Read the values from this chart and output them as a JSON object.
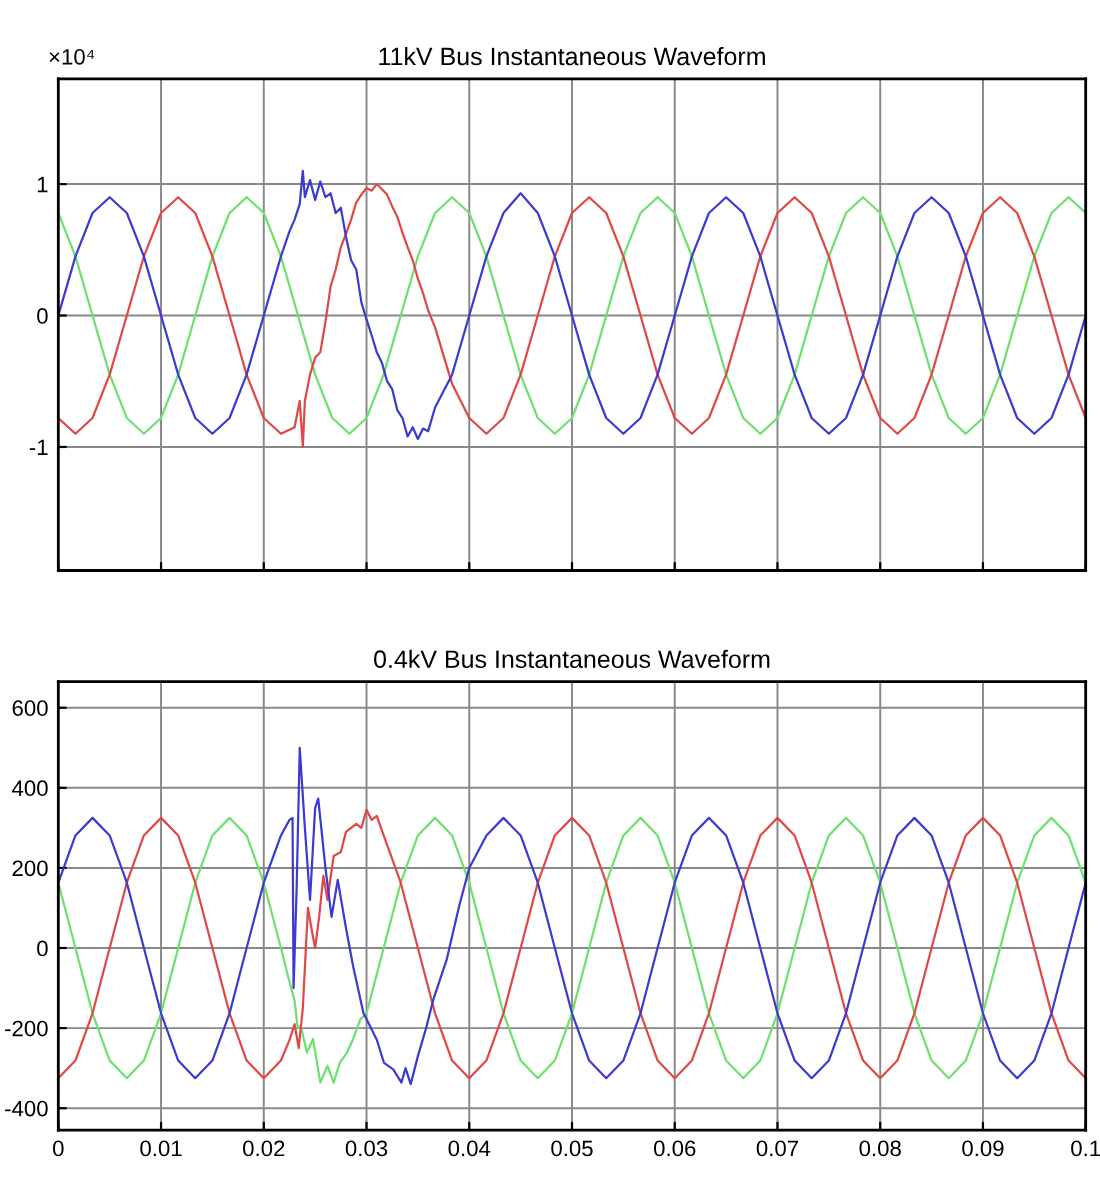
{
  "chart_data": [
    {
      "type": "line",
      "title": "11kV Bus Instantaneous Waveform",
      "annotations": [
        "×10⁴"
      ],
      "xlim": [
        0,
        0.1
      ],
      "xticks": [
        0,
        0.01,
        0.02,
        0.03,
        0.04,
        0.05,
        0.06,
        0.07,
        0.08,
        0.09,
        0.1
      ],
      "ylim": [
        -1.94,
        1.8
      ],
      "yticks": [
        -1,
        0,
        1
      ],
      "grid": true,
      "tick_labels": "y",
      "line_style": "solid",
      "x": [
        0,
        0.00167,
        0.00333,
        0.005,
        0.00667,
        0.00833,
        0.01,
        0.01167,
        0.01333,
        0.015,
        0.01667,
        0.01833,
        0.02,
        0.02167,
        0.02333,
        0.025,
        0.02667,
        0.02833,
        0.03,
        0.03167,
        0.03333,
        0.035,
        0.03667,
        0.03833,
        0.04,
        0.04167,
        0.04333,
        0.045,
        0.04667,
        0.04833,
        0.05,
        0.05167,
        0.05333,
        0.055,
        0.05667,
        0.05833,
        0.06,
        0.06167,
        0.06333,
        0.065,
        0.06667,
        0.06833,
        0.07,
        0.07167,
        0.07333,
        0.075,
        0.07667,
        0.07833,
        0.08,
        0.08167,
        0.08333,
        0.085,
        0.08667,
        0.08833,
        0.09,
        0.09167,
        0.09333,
        0.095,
        0.09667,
        0.09833,
        0.1
      ],
      "series": [
        {
          "color": "#6ee06e",
          "values": [
            0.78,
            0.45,
            0,
            -0.45,
            -0.78,
            -0.9,
            -0.78,
            -0.45,
            0,
            0.45,
            0.78,
            0.9,
            0.78,
            0.45,
            0,
            -0.45,
            -0.78,
            -0.9,
            -0.78,
            -0.45,
            0,
            0.45,
            0.78,
            0.9,
            0.78,
            0.45,
            0,
            -0.45,
            -0.78,
            -0.9,
            -0.78,
            -0.45,
            0,
            0.45,
            0.78,
            0.9,
            0.78,
            0.45,
            0,
            -0.45,
            -0.78,
            -0.9,
            -0.78,
            -0.45,
            0,
            0.45,
            0.78,
            0.9,
            0.78,
            0.45,
            0,
            -0.45,
            -0.78,
            -0.9,
            -0.78,
            -0.45,
            0,
            0.45,
            0.78,
            0.9,
            0.78
          ]
        },
        {
          "color": "#e04848",
          "x": [
            0,
            0.00167,
            0.00333,
            0.005,
            0.00667,
            0.00833,
            0.01,
            0.01167,
            0.01333,
            0.015,
            0.01667,
            0.01833,
            0.02,
            0.02167,
            0.0225,
            0.023,
            0.0235,
            0.0238,
            0.024,
            0.0245,
            0.025,
            0.0255,
            0.026,
            0.0265,
            0.027,
            0.0275,
            0.028,
            0.0285,
            0.029,
            0.0295,
            0.03,
            0.0305,
            0.031,
            0.0315,
            0.032,
            0.0325,
            0.033,
            0.0335,
            0.034,
            0.0345,
            0.035,
            0.0355,
            0.036,
            0.03667,
            0.03833,
            0.04,
            0.04167,
            0.04333,
            0.045,
            0.04667,
            0.04833,
            0.05,
            0.05167,
            0.05333,
            0.055,
            0.05667,
            0.05833,
            0.06,
            0.06167,
            0.06333,
            0.065,
            0.06667,
            0.06833,
            0.07,
            0.07167,
            0.07333,
            0.075,
            0.07667,
            0.07833,
            0.08,
            0.08167,
            0.08333,
            0.085,
            0.08667,
            0.08833,
            0.09,
            0.09167,
            0.09333,
            0.095,
            0.09667,
            0.09833,
            0.1
          ],
          "values": [
            -0.78,
            -0.9,
            -0.78,
            -0.45,
            0,
            0.45,
            0.78,
            0.9,
            0.78,
            0.45,
            0,
            -0.45,
            -0.78,
            -0.9,
            -0.87,
            -0.85,
            -0.65,
            -1,
            -0.65,
            -0.45,
            -0.32,
            -0.28,
            -0.05,
            0.22,
            0.35,
            0.52,
            0.62,
            0.73,
            0.86,
            0.92,
            0.97,
            0.95,
            1,
            0.96,
            0.92,
            0.83,
            0.75,
            0.63,
            0.52,
            0.42,
            0.28,
            0.17,
            0.04,
            -0.09,
            -0.52,
            -0.78,
            -0.9,
            -0.78,
            -0.45,
            0,
            0.45,
            0.78,
            0.9,
            0.78,
            0.45,
            0,
            -0.45,
            -0.78,
            -0.9,
            -0.78,
            -0.45,
            0,
            0.45,
            0.78,
            0.9,
            0.78,
            0.45,
            0,
            -0.45,
            -0.78,
            -0.9,
            -0.78,
            -0.45,
            0,
            0.45,
            0.78,
            0.9,
            0.78,
            0.45,
            0,
            -0.45,
            -0.78
          ]
        },
        {
          "color": "#3b3bd0",
          "x": [
            0,
            0.00167,
            0.00333,
            0.005,
            0.00667,
            0.00833,
            0.01,
            0.01167,
            0.01333,
            0.015,
            0.01667,
            0.01833,
            0.02,
            0.02167,
            0.0225,
            0.023,
            0.0235,
            0.0238,
            0.024,
            0.0245,
            0.025,
            0.0255,
            0.026,
            0.0265,
            0.027,
            0.0275,
            0.028,
            0.0285,
            0.029,
            0.0295,
            0.03,
            0.0305,
            0.031,
            0.0315,
            0.032,
            0.0325,
            0.033,
            0.0335,
            0.034,
            0.0345,
            0.035,
            0.0355,
            0.036,
            0.03667,
            0.03833,
            0.04,
            0.04167,
            0.04333,
            0.045,
            0.04667,
            0.04833,
            0.05,
            0.05167,
            0.05333,
            0.055,
            0.05667,
            0.05833,
            0.06,
            0.06167,
            0.06333,
            0.065,
            0.06667,
            0.06833,
            0.07,
            0.07167,
            0.07333,
            0.075,
            0.07667,
            0.07833,
            0.08,
            0.08167,
            0.08333,
            0.085,
            0.08667,
            0.08833,
            0.09,
            0.09167,
            0.09333,
            0.095,
            0.09667,
            0.09833,
            0.1
          ],
          "values": [
            0,
            0.45,
            0.78,
            0.9,
            0.78,
            0.45,
            0,
            -0.45,
            -0.78,
            -0.9,
            -0.78,
            -0.45,
            0,
            0.45,
            0.64,
            0.73,
            0.85,
            1.1,
            0.9,
            1.03,
            0.88,
            1.02,
            0.9,
            0.93,
            0.78,
            0.82,
            0.6,
            0.42,
            0.35,
            0.1,
            -0.03,
            -0.15,
            -0.28,
            -0.36,
            -0.5,
            -0.56,
            -0.72,
            -0.78,
            -0.92,
            -0.85,
            -0.94,
            -0.86,
            -0.88,
            -0.7,
            -0.45,
            0,
            0.45,
            0.78,
            0.93,
            0.78,
            0.45,
            0,
            -0.45,
            -0.78,
            -0.9,
            -0.78,
            -0.45,
            0,
            0.45,
            0.78,
            0.9,
            0.78,
            0.45,
            0,
            -0.45,
            -0.78,
            -0.9,
            -0.78,
            -0.45,
            0,
            0.45,
            0.78,
            0.9,
            0.78,
            0.45,
            0,
            -0.45,
            -0.78,
            -0.9,
            -0.78,
            -0.45,
            0
          ]
        }
      ]
    },
    {
      "type": "line",
      "title": "0.4kV Bus Instantaneous Waveform",
      "xlim": [
        0,
        0.1
      ],
      "xticks": [
        0,
        0.01,
        0.02,
        0.03,
        0.04,
        0.05,
        0.06,
        0.07,
        0.08,
        0.09,
        0.1
      ],
      "ylim": [
        -455,
        665
      ],
      "yticks": [
        -400,
        -200,
        0,
        200,
        400,
        600
      ],
      "grid": true,
      "line_style": "solid",
      "series": [
        {
          "color": "#6ee06e",
          "x": [
            0,
            0.00167,
            0.00333,
            0.005,
            0.00667,
            0.00833,
            0.01,
            0.01167,
            0.01333,
            0.015,
            0.01667,
            0.01833,
            0.02,
            0.02167,
            0.0225,
            0.023,
            0.0233,
            0.0236,
            0.0242,
            0.0248,
            0.0255,
            0.0262,
            0.0268,
            0.0274,
            0.0281,
            0.0287,
            0.0294,
            0.03,
            0.03167,
            0.03333,
            0.035,
            0.03667,
            0.03833,
            0.04,
            0.04167,
            0.04333,
            0.045,
            0.04667,
            0.04833,
            0.05,
            0.05167,
            0.05333,
            0.055,
            0.05667,
            0.05833,
            0.06,
            0.06167,
            0.06333,
            0.065,
            0.06667,
            0.06833,
            0.07,
            0.07167,
            0.07333,
            0.075,
            0.07667,
            0.07833,
            0.08,
            0.08167,
            0.08333,
            0.085,
            0.08667,
            0.08833,
            0.09,
            0.09167,
            0.09333,
            0.095,
            0.09667,
            0.09833,
            0.1
          ],
          "values": [
            163,
            0,
            -163,
            -281,
            -325,
            -281,
            -163,
            0,
            163,
            281,
            325,
            281,
            163,
            0,
            -84,
            -132,
            -200,
            -195,
            -261,
            -227,
            -336,
            -294,
            -336,
            -287,
            -261,
            -227,
            -178,
            -163,
            0,
            163,
            281,
            325,
            281,
            163,
            0,
            -163,
            -281,
            -325,
            -281,
            -163,
            0,
            163,
            281,
            325,
            281,
            163,
            0,
            -163,
            -281,
            -325,
            -281,
            -163,
            0,
            163,
            281,
            325,
            281,
            163,
            0,
            -163,
            -281,
            -325,
            -281,
            -163,
            0,
            163,
            281,
            325,
            281,
            163
          ]
        },
        {
          "color": "#e04848",
          "x": [
            0,
            0.00167,
            0.00333,
            0.005,
            0.00667,
            0.00833,
            0.01,
            0.01167,
            0.01333,
            0.015,
            0.01667,
            0.01833,
            0.02,
            0.02167,
            0.0225,
            0.023,
            0.0234,
            0.0238,
            0.0243,
            0.0247,
            0.025,
            0.0254,
            0.0258,
            0.0262,
            0.0268,
            0.0275,
            0.028,
            0.029,
            0.0295,
            0.03,
            0.0305,
            0.031,
            0.03167,
            0.03333,
            0.035,
            0.03667,
            0.03833,
            0.04,
            0.04167,
            0.04333,
            0.045,
            0.04667,
            0.04833,
            0.05,
            0.05167,
            0.05333,
            0.055,
            0.05667,
            0.05833,
            0.06,
            0.06167,
            0.06333,
            0.065,
            0.06667,
            0.06833,
            0.07,
            0.07167,
            0.07333,
            0.075,
            0.07667,
            0.07833,
            0.08,
            0.08167,
            0.08333,
            0.085,
            0.08667,
            0.08833,
            0.09,
            0.09167,
            0.09333,
            0.095,
            0.09667,
            0.09833,
            0.1
          ],
          "values": [
            -325,
            -281,
            -163,
            0,
            163,
            281,
            325,
            281,
            163,
            0,
            -163,
            -281,
            -325,
            -281,
            -230,
            -190,
            -250,
            -150,
            100,
            40,
            0,
            80,
            180,
            120,
            230,
            240,
            290,
            310,
            300,
            345,
            320,
            330,
            281,
            163,
            0,
            -163,
            -281,
            -325,
            -281,
            -163,
            0,
            163,
            281,
            325,
            281,
            163,
            0,
            -163,
            -281,
            -325,
            -281,
            -163,
            0,
            163,
            281,
            325,
            281,
            163,
            0,
            -163,
            -281,
            -325,
            -281,
            -163,
            0,
            163,
            281,
            325,
            281,
            163,
            0,
            -163,
            -281,
            -325
          ]
        },
        {
          "color": "#3b3bd0",
          "x": [
            0,
            0.00167,
            0.00333,
            0.005,
            0.00667,
            0.00833,
            0.01,
            0.01167,
            0.01333,
            0.015,
            0.01667,
            0.01833,
            0.02,
            0.02167,
            0.0225,
            0.0228,
            0.0229,
            0.0232,
            0.0235,
            0.024,
            0.0245,
            0.025,
            0.0253,
            0.026,
            0.0266,
            0.0272,
            0.028,
            0.0287,
            0.0297,
            0.031,
            0.0317,
            0.0326,
            0.0334,
            0.0338,
            0.0343,
            0.035,
            0.0358,
            0.0365,
            0.0378,
            0.039,
            0.04,
            0.04167,
            0.04333,
            0.045,
            0.04667,
            0.04833,
            0.05,
            0.05167,
            0.05333,
            0.055,
            0.05667,
            0.05833,
            0.06,
            0.06167,
            0.06333,
            0.065,
            0.06667,
            0.06833,
            0.07,
            0.07167,
            0.07333,
            0.075,
            0.07667,
            0.07833,
            0.08,
            0.08167,
            0.08333,
            0.085,
            0.08667,
            0.08833,
            0.09,
            0.09167,
            0.09333,
            0.095,
            0.09667,
            0.09833,
            0.1
          ],
          "values": [
            163,
            281,
            325,
            281,
            163,
            0,
            -163,
            -281,
            -325,
            -281,
            -163,
            0,
            163,
            281,
            320,
            325,
            -100,
            150,
            500,
            300,
            120,
            350,
            373,
            200,
            78,
            170,
            50,
            -46,
            -162,
            -229,
            -287,
            -303,
            -336,
            -300,
            -340,
            -270,
            -200,
            -129,
            -29,
            103,
            200,
            281,
            325,
            281,
            163,
            0,
            -163,
            -281,
            -325,
            -281,
            -163,
            0,
            163,
            281,
            325,
            281,
            163,
            0,
            -163,
            -281,
            -325,
            -281,
            -163,
            0,
            163,
            281,
            325,
            281,
            163,
            0,
            -163,
            -281,
            -325,
            -281,
            -163,
            0,
            163
          ]
        }
      ]
    }
  ]
}
